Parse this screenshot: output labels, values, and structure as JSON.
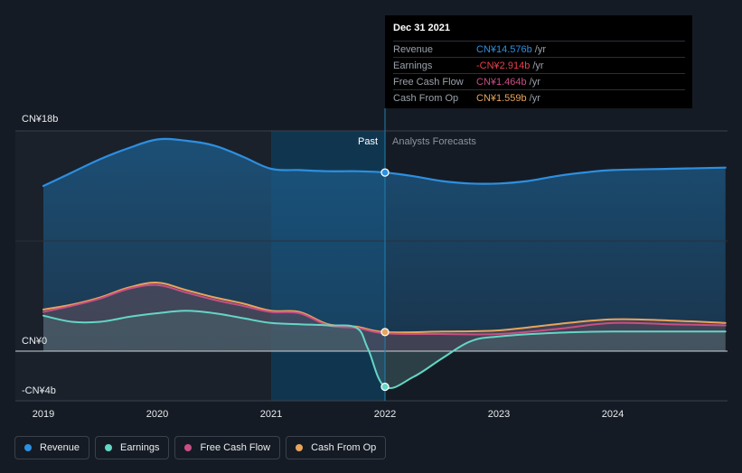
{
  "colors": {
    "background": "#151b24",
    "revenue": "#2d8fe0",
    "earnings": "#64d6c5",
    "free_cash_flow": "#c84f83",
    "cash_from_op": "#e8a45c",
    "past_highlight": "#0f3b57",
    "earnings_negative": "#e8414a"
  },
  "tooltip": {
    "date": "Dec 31 2021",
    "rows": [
      {
        "label": "Revenue",
        "value": "CN¥14.576b",
        "unit": "/yr",
        "color": "#2d8fe0"
      },
      {
        "label": "Earnings",
        "value": "-CN¥2.914b",
        "unit": "/yr",
        "color": "#e8414a"
      },
      {
        "label": "Free Cash Flow",
        "value": "CN¥1.464b",
        "unit": "/yr",
        "color": "#c84f83"
      },
      {
        "label": "Cash From Op",
        "value": "CN¥1.559b",
        "unit": "/yr",
        "color": "#e8a45c"
      }
    ]
  },
  "legend": [
    {
      "label": "Revenue",
      "color": "#2d8fe0",
      "icon": "revenue-dot-icon"
    },
    {
      "label": "Earnings",
      "color": "#64d6c5",
      "icon": "earnings-dot-icon"
    },
    {
      "label": "Free Cash Flow",
      "color": "#c84f83",
      "icon": "free-cash-flow-dot-icon"
    },
    {
      "label": "Cash From Op",
      "color": "#e8a45c",
      "icon": "cash-from-op-dot-icon"
    }
  ],
  "chart_data": {
    "type": "area",
    "title": "",
    "xlabel": "",
    "ylabel": "",
    "y_unit": "CN¥b",
    "xlim": [
      2019.0,
      2024.99
    ],
    "ylim": [
      -4,
      18
    ],
    "y_tick_labels": [
      {
        "value": 18,
        "label": "CN¥18b"
      },
      {
        "value": 0,
        "label": "CN¥0"
      },
      {
        "value": -4,
        "label": "-CN¥4b"
      }
    ],
    "x_ticks": [
      2019,
      2020,
      2021,
      2022,
      2023,
      2024
    ],
    "x_tick_labels": [
      "2019",
      "2020",
      "2021",
      "2022",
      "2023",
      "2024"
    ],
    "past_label": "Past",
    "forecast_label": "Analysts Forecasts",
    "divider_x": 2022.0,
    "past_highlight_start": 2021.0,
    "series": [
      {
        "name": "Revenue",
        "key": "revenue",
        "x": [
          2019.0,
          2019.25,
          2019.5,
          2019.75,
          2020.0,
          2020.25,
          2020.5,
          2020.75,
          2021.0,
          2021.25,
          2021.5,
          2021.75,
          2022.0,
          2022.25,
          2022.5,
          2022.75,
          2023.0,
          2023.25,
          2023.5,
          2023.75,
          2024.0,
          2024.5,
          2024.99
        ],
        "y": [
          13.5,
          14.6,
          15.7,
          16.6,
          17.3,
          17.2,
          16.8,
          15.9,
          14.9,
          14.8,
          14.7,
          14.7,
          14.6,
          14.3,
          13.9,
          13.7,
          13.7,
          13.9,
          14.3,
          14.6,
          14.8,
          14.9,
          15.0
        ]
      },
      {
        "name": "Earnings",
        "key": "earnings",
        "x": [
          2019.0,
          2019.25,
          2019.5,
          2019.75,
          2020.0,
          2020.25,
          2020.5,
          2020.75,
          2021.0,
          2021.25,
          2021.5,
          2021.75,
          2021.85,
          2022.0,
          2022.25,
          2022.5,
          2022.75,
          2023.0,
          2023.5,
          2024.0,
          2024.99
        ],
        "y": [
          2.9,
          2.4,
          2.4,
          2.8,
          3.1,
          3.3,
          3.1,
          2.7,
          2.3,
          2.2,
          2.1,
          1.9,
          0.2,
          -2.914,
          -2.1,
          -0.6,
          0.8,
          1.2,
          1.5,
          1.6,
          1.6
        ]
      },
      {
        "name": "Free Cash Flow",
        "key": "free_cash_flow",
        "x": [
          2019.0,
          2019.25,
          2019.5,
          2019.75,
          2020.0,
          2020.25,
          2020.5,
          2020.75,
          2021.0,
          2021.25,
          2021.5,
          2021.75,
          2022.0,
          2022.5,
          2023.0,
          2023.5,
          2024.0,
          2024.5,
          2024.99
        ],
        "y": [
          3.2,
          3.7,
          4.3,
          5.1,
          5.4,
          4.8,
          4.2,
          3.7,
          3.2,
          3.1,
          2.1,
          1.9,
          1.464,
          1.4,
          1.4,
          1.8,
          2.3,
          2.2,
          2.1
        ]
      },
      {
        "name": "Cash From Op",
        "key": "cash_from_op",
        "x": [
          2019.0,
          2019.25,
          2019.5,
          2019.75,
          2020.0,
          2020.25,
          2020.5,
          2020.75,
          2021.0,
          2021.25,
          2021.5,
          2021.75,
          2022.0,
          2022.5,
          2023.0,
          2023.5,
          2024.0,
          2024.5,
          2024.99
        ],
        "y": [
          3.4,
          3.8,
          4.4,
          5.2,
          5.6,
          5.0,
          4.4,
          3.9,
          3.3,
          3.2,
          2.2,
          2.0,
          1.559,
          1.6,
          1.7,
          2.2,
          2.6,
          2.5,
          2.3
        ]
      }
    ]
  }
}
